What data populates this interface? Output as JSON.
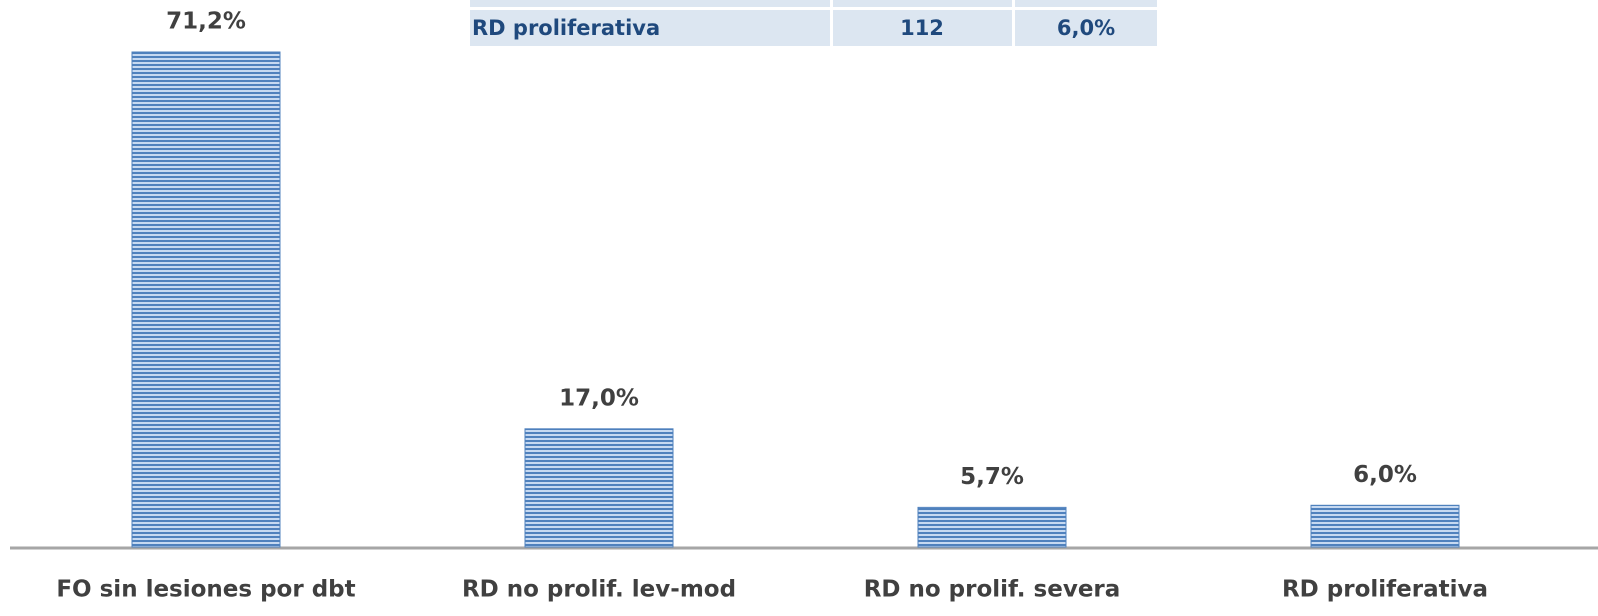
{
  "chart_data": {
    "type": "bar",
    "categories": [
      "FO sin lesiones por dbt",
      "RD no prolif. lev-mod",
      "RD no prolif. severa",
      "RD proliferativa"
    ],
    "values": [
      71.2,
      17.0,
      5.7,
      6.0
    ],
    "value_labels": [
      "71,2%",
      "17,0%",
      "5,7%",
      "6,0%"
    ],
    "color": "#4f81bd"
  },
  "table": {
    "rows": [
      [
        "RD proliferativa",
        "112",
        "6,0%"
      ]
    ]
  }
}
